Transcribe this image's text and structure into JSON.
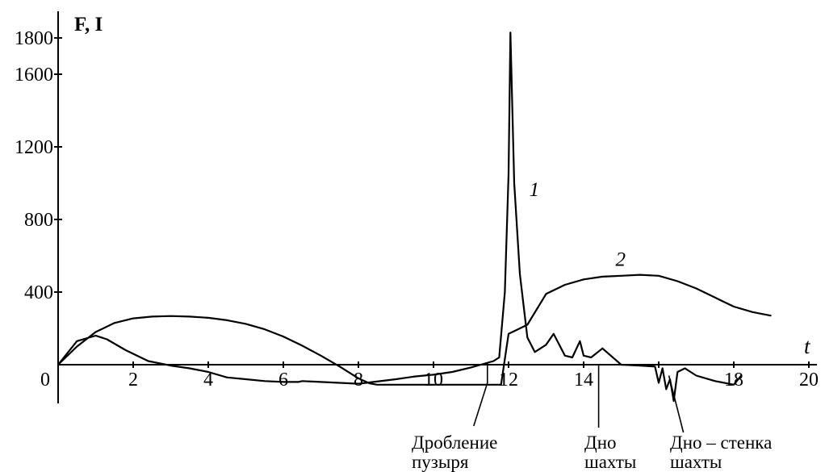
{
  "chart_data": {
    "type": "line",
    "ylabel": "F, I",
    "xlabel": "t",
    "xlim": [
      0,
      20
    ],
    "ylim": [
      -230,
      1840
    ],
    "x_ticks": [
      0,
      2,
      4,
      6,
      8,
      10,
      12,
      14,
      16,
      18,
      20
    ],
    "x_tick_labels": [
      "0",
      "2",
      "4",
      "6",
      "8",
      "10",
      "12",
      "14",
      "",
      "18",
      "20"
    ],
    "y_ticks": [
      400,
      800,
      1200,
      1600,
      1800
    ],
    "y_tick_labels": [
      "400",
      "800",
      "1200",
      "1600",
      "1800"
    ],
    "grid": false,
    "series": [
      {
        "name": "1",
        "x": [
          0,
          0.5,
          1.0,
          1.3,
          1.8,
          2.4,
          3.0,
          3.5,
          4.0,
          4.5,
          5.0,
          5.5,
          6.0,
          6.4,
          6.5,
          7.0,
          8.0,
          8.2,
          9.0,
          9.5,
          10.0,
          10.5,
          11.0,
          11.6,
          11.75,
          11.9,
          12.0,
          12.05,
          12.15,
          12.3,
          12.5,
          12.7,
          13.0,
          13.2,
          13.5,
          13.7,
          13.9,
          14.0,
          14.2,
          14.5,
          15.0,
          15.5,
          15.9,
          16.0,
          16.1,
          16.2,
          16.3,
          16.4,
          16.5,
          16.7,
          17.0,
          17.5,
          18.0,
          18.2
        ],
        "y": [
          0,
          130,
          160,
          140,
          80,
          20,
          -5,
          -20,
          -40,
          -70,
          -80,
          -90,
          -95,
          -95,
          -90,
          -95,
          -105,
          -100,
          -80,
          -65,
          -55,
          -40,
          -15,
          20,
          40,
          400,
          1050,
          1830,
          1000,
          500,
          150,
          70,
          110,
          170,
          50,
          40,
          130,
          50,
          40,
          90,
          0,
          -5,
          -10,
          -100,
          -20,
          -135,
          -80,
          -200,
          -40,
          -20,
          -60,
          -90,
          -110,
          -60
        ]
      },
      {
        "name": "2",
        "x": [
          0,
          0.5,
          1.0,
          1.5,
          2.0,
          2.5,
          3.0,
          3.5,
          4.0,
          4.5,
          5.0,
          5.5,
          6.0,
          6.5,
          7.0,
          7.5,
          8.0,
          8.3,
          8.5,
          9.0,
          10.0,
          11.0,
          11.5,
          11.8,
          12.0,
          12.5,
          13.0,
          13.5,
          14.0,
          14.5,
          15.0,
          15.5,
          16.0,
          16.5,
          17.0,
          17.5,
          18.0,
          18.5,
          19.0
        ],
        "y": [
          0,
          100,
          180,
          230,
          255,
          265,
          268,
          265,
          258,
          245,
          225,
          195,
          155,
          105,
          50,
          -10,
          -75,
          -103,
          -110,
          -110,
          -110,
          -110,
          -110,
          -110,
          170,
          220,
          390,
          440,
          470,
          485,
          490,
          495,
          490,
          460,
          420,
          370,
          320,
          290,
          270
        ]
      }
    ],
    "labels": {
      "curve1": "1",
      "curve2": "2",
      "annot_bubble_line1": "Дробление",
      "annot_bubble_line2": "пузыря",
      "annot_bottom_line1": "Дно",
      "annot_bottom_line2": "шахты",
      "annot_wall_line1": "Дно – стенка",
      "annot_wall_line2": "шахты"
    },
    "annotations": [
      {
        "text": "Дробление пузыря",
        "x": 11.5
      },
      {
        "text": "Дно шахты",
        "x": 14.4
      },
      {
        "text": "Дно – стенка шахты",
        "x": 16.4
      }
    ]
  }
}
